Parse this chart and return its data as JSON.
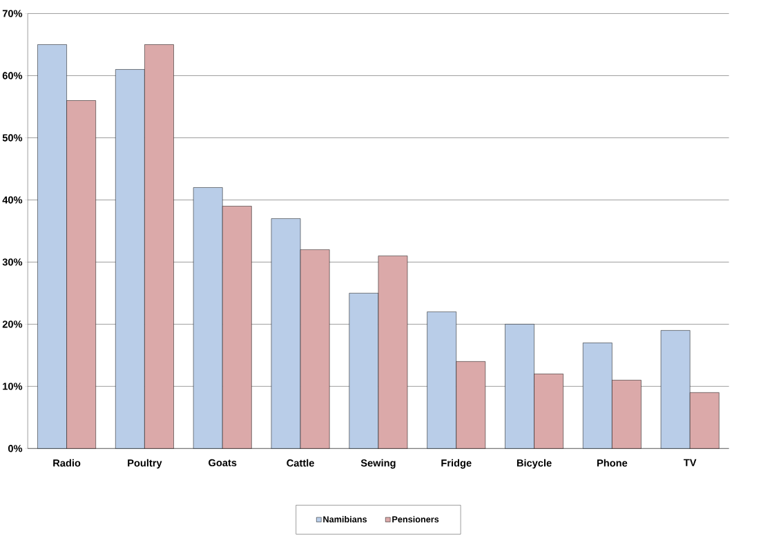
{
  "chart_data": {
    "type": "bar",
    "categories": [
      "Radio",
      "Poultry",
      "Goats",
      "Cattle",
      "Sewing",
      "Fridge",
      "Bicycle",
      "Phone",
      "TV"
    ],
    "series": [
      {
        "name": "Namibians",
        "color": "#b9cde8",
        "values": [
          65,
          61,
          42,
          37,
          25,
          22,
          20,
          17,
          19
        ]
      },
      {
        "name": "Pensioners",
        "color": "#dba9a9",
        "values": [
          56,
          65,
          39,
          32,
          31,
          14,
          12,
          11,
          9
        ]
      }
    ],
    "ylim": [
      0,
      70
    ],
    "yticks": [
      {
        "value": 0,
        "label": "0%"
      },
      {
        "value": 10,
        "label": "10%"
      },
      {
        "value": 20,
        "label": "20%"
      },
      {
        "value": 30,
        "label": "30%"
      },
      {
        "value": 40,
        "label": "40%"
      },
      {
        "value": 50,
        "label": "50%"
      },
      {
        "value": 60,
        "label": "60%"
      },
      {
        "value": 70,
        "label": "70%"
      }
    ],
    "grid": "y",
    "legend": "bottom"
  }
}
